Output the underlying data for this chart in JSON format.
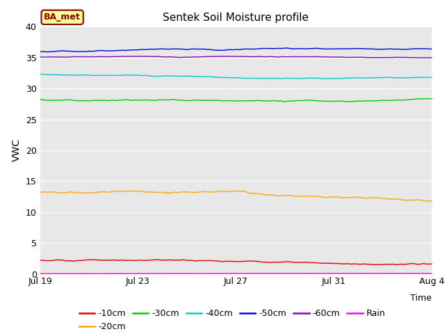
{
  "title": "Sentek Soil Moisture profile",
  "xlabel": "Time",
  "ylabel": "VWC",
  "legend_label": "BA_met",
  "ylim": [
    0,
    40
  ],
  "yticks": [
    0,
    5,
    10,
    15,
    20,
    25,
    30,
    35,
    40
  ],
  "xtick_labels": [
    "Jul 19",
    "Jul 23",
    "Jul 27",
    "Jul 31",
    "Aug 4"
  ],
  "background_color": "#e8e8e8",
  "n_points": 500,
  "series": [
    {
      "label": "-10cm",
      "color": "#dd0000",
      "mean": 2.2,
      "noise": 0.12,
      "trend": -0.25
    },
    {
      "label": "-20cm",
      "color": "#ffa500",
      "mean": 13.2,
      "noise": 0.18,
      "trend": -0.9
    },
    {
      "label": "-30cm",
      "color": "#00cc00",
      "mean": 28.2,
      "noise": 0.15,
      "trend": -0.5
    },
    {
      "label": "-40cm",
      "color": "#00cccc",
      "mean": 32.3,
      "noise": 0.1,
      "trend": -0.2
    },
    {
      "label": "-50cm",
      "color": "#0000dd",
      "mean": 36.0,
      "noise": 0.12,
      "trend": 0.0
    },
    {
      "label": "-60cm",
      "color": "#8800bb",
      "mean": 35.1,
      "noise": 0.06,
      "trend": 0.0
    },
    {
      "label": "Rain",
      "color": "#ff00ff",
      "mean": 0.02,
      "noise": 0.01,
      "trend": 0.0
    }
  ]
}
